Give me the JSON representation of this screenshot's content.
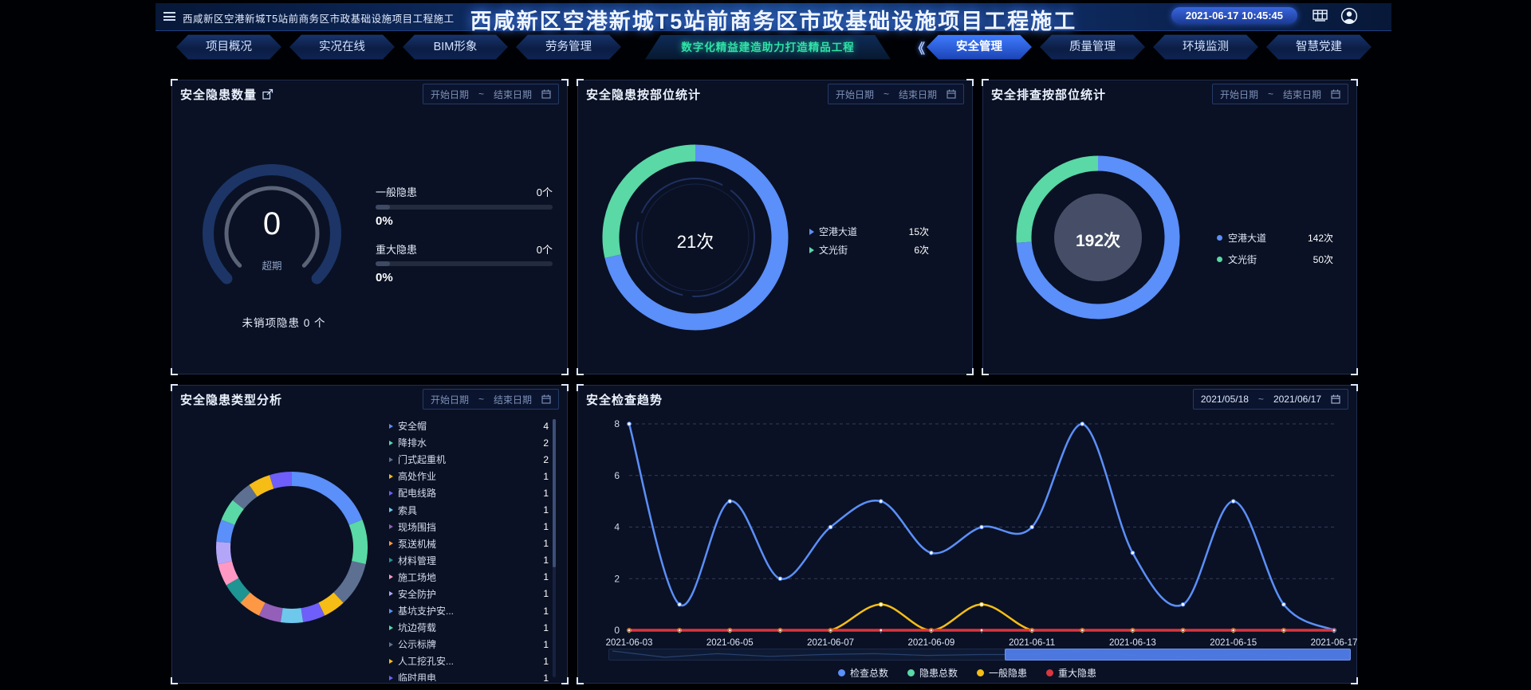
{
  "header": {
    "breadcrumb": "西咸新区空港新城T5站前商务区市政基础设施项目工程施工",
    "title": "西咸新区空港新城T5站前商务区市政基础设施项目工程施工",
    "datetime": "2021-06-17 10:45:45",
    "banner": "数字化精益建造助力打造精品工程",
    "tabs": [
      {
        "label": "项目概况",
        "active": false
      },
      {
        "label": "实况在线",
        "active": false
      },
      {
        "label": "BIM形象",
        "active": false
      },
      {
        "label": "劳务管理",
        "active": false
      },
      {
        "label": "安全管理",
        "active": true
      },
      {
        "label": "质量管理",
        "active": false
      },
      {
        "label": "环境监测",
        "active": false
      },
      {
        "label": "智慧党建",
        "active": false
      }
    ]
  },
  "date_filter": {
    "start_placeholder": "开始日期",
    "separator": "~",
    "end_placeholder": "结束日期"
  },
  "panel_hazard_count": {
    "title": "安全隐患数量",
    "gauge_value": "0",
    "gauge_label": "超期",
    "bars": [
      {
        "label": "一般隐患",
        "count": "0个",
        "percent": "0%",
        "fill": 0
      },
      {
        "label": "重大隐患",
        "count": "0个",
        "percent": "0%",
        "fill": 0
      }
    ],
    "footer": "未销项隐患 0 个"
  },
  "panel_hazard_location": {
    "title": "安全隐患按部位统计",
    "center": "21次"
  },
  "panel_inspect_location": {
    "title": "安全排查按部位统计",
    "center": "192次"
  },
  "panel_hazard_types": {
    "title": "安全隐患类型分析"
  },
  "panel_trend": {
    "title": "安全检查趋势",
    "date_start": "2021/05/18",
    "date_end": "2021/06/17"
  },
  "colors": {
    "accent_blue": "#5B8FF9",
    "accent_green": "#5AD8A6",
    "accent_yellow": "#F6BD16",
    "accent_red": "#D9363E",
    "banner_text": "#2FE2A7"
  },
  "chart_data": [
    {
      "id": "hazard-by-location",
      "type": "pie",
      "donut": true,
      "title": "安全隐患按部位统计",
      "center_label": "21次",
      "labels": [
        "空港大道",
        "文光街"
      ],
      "values": [
        15,
        6
      ],
      "value_labels": [
        "15次",
        "6次"
      ],
      "colors": [
        "#5B8FF9",
        "#5AD8A6"
      ],
      "legend_position": "right"
    },
    {
      "id": "inspection-by-location",
      "type": "pie",
      "donut": true,
      "title": "安全排查按部位统计",
      "center_label": "192次",
      "labels": [
        "空港大道",
        "文光街"
      ],
      "values": [
        142,
        50
      ],
      "value_labels": [
        "142次",
        "50次"
      ],
      "colors": [
        "#5B8FF9",
        "#5AD8A6"
      ],
      "legend_position": "right"
    },
    {
      "id": "hazard-types",
      "type": "pie",
      "donut": true,
      "title": "安全隐患类型分析",
      "labels": [
        "安全帽",
        "降排水",
        "门式起重机",
        "高处作业",
        "配电线路",
        "索具",
        "现场围挡",
        "泵送机械",
        "材料管理",
        "施工场地",
        "安全防护",
        "基坑支护安...",
        "坑边荷载",
        "公示标牌",
        "人工挖孔安...",
        "临时用电"
      ],
      "values": [
        4,
        2,
        2,
        1,
        1,
        1,
        1,
        1,
        1,
        1,
        1,
        1,
        1,
        1,
        1,
        1
      ],
      "colors": [
        "#5B8FF9",
        "#5AD8A6",
        "#5D7092",
        "#F6BD16",
        "#6F5EF9",
        "#6DC8EC",
        "#945FB9",
        "#FF9845",
        "#1E9493",
        "#FF99C3",
        "#B3A6F9",
        "#5B8FF9",
        "#5AD8A6",
        "#5D7092",
        "#F6BD16",
        "#6F5EF9"
      ],
      "legend_position": "right-list"
    },
    {
      "id": "inspection-trend",
      "type": "line",
      "title": "安全检查趋势",
      "x": [
        "2021-06-03",
        "2021-06-04",
        "2021-06-05",
        "2021-06-06",
        "2021-06-07",
        "2021-06-08",
        "2021-06-09",
        "2021-06-10",
        "2021-06-11",
        "2021-06-12",
        "2021-06-13",
        "2021-06-14",
        "2021-06-15",
        "2021-06-16",
        "2021-06-17"
      ],
      "xtick_labels": [
        "2021-06-03",
        "2021-06-05",
        "2021-06-07",
        "2021-06-09",
        "2021-06-11",
        "2021-06-13",
        "2021-06-15",
        "2021-06-17"
      ],
      "ylim": [
        0,
        8
      ],
      "yticks": [
        0,
        2,
        4,
        6,
        8
      ],
      "grid": "dashed",
      "legend_position": "bottom",
      "series": [
        {
          "name": "检查总数",
          "color": "#5B8FF9",
          "values": [
            8,
            1,
            5,
            2,
            4,
            5,
            3,
            4,
            4,
            8,
            3,
            1,
            5,
            1,
            0
          ]
        },
        {
          "name": "隐患总数",
          "color": "#5AD8A6",
          "values": [
            0,
            0,
            0,
            0,
            0,
            1,
            0,
            1,
            0,
            0,
            0,
            0,
            0,
            0,
            0
          ]
        },
        {
          "name": "一般隐患",
          "color": "#F6BD16",
          "values": [
            0,
            0,
            0,
            0,
            0,
            1,
            0,
            1,
            0,
            0,
            0,
            0,
            0,
            0,
            0
          ]
        },
        {
          "name": "重大隐患",
          "color": "#D9363E",
          "values": [
            0,
            0,
            0,
            0,
            0,
            0,
            0,
            0,
            0,
            0,
            0,
            0,
            0,
            0,
            0
          ]
        }
      ]
    }
  ]
}
